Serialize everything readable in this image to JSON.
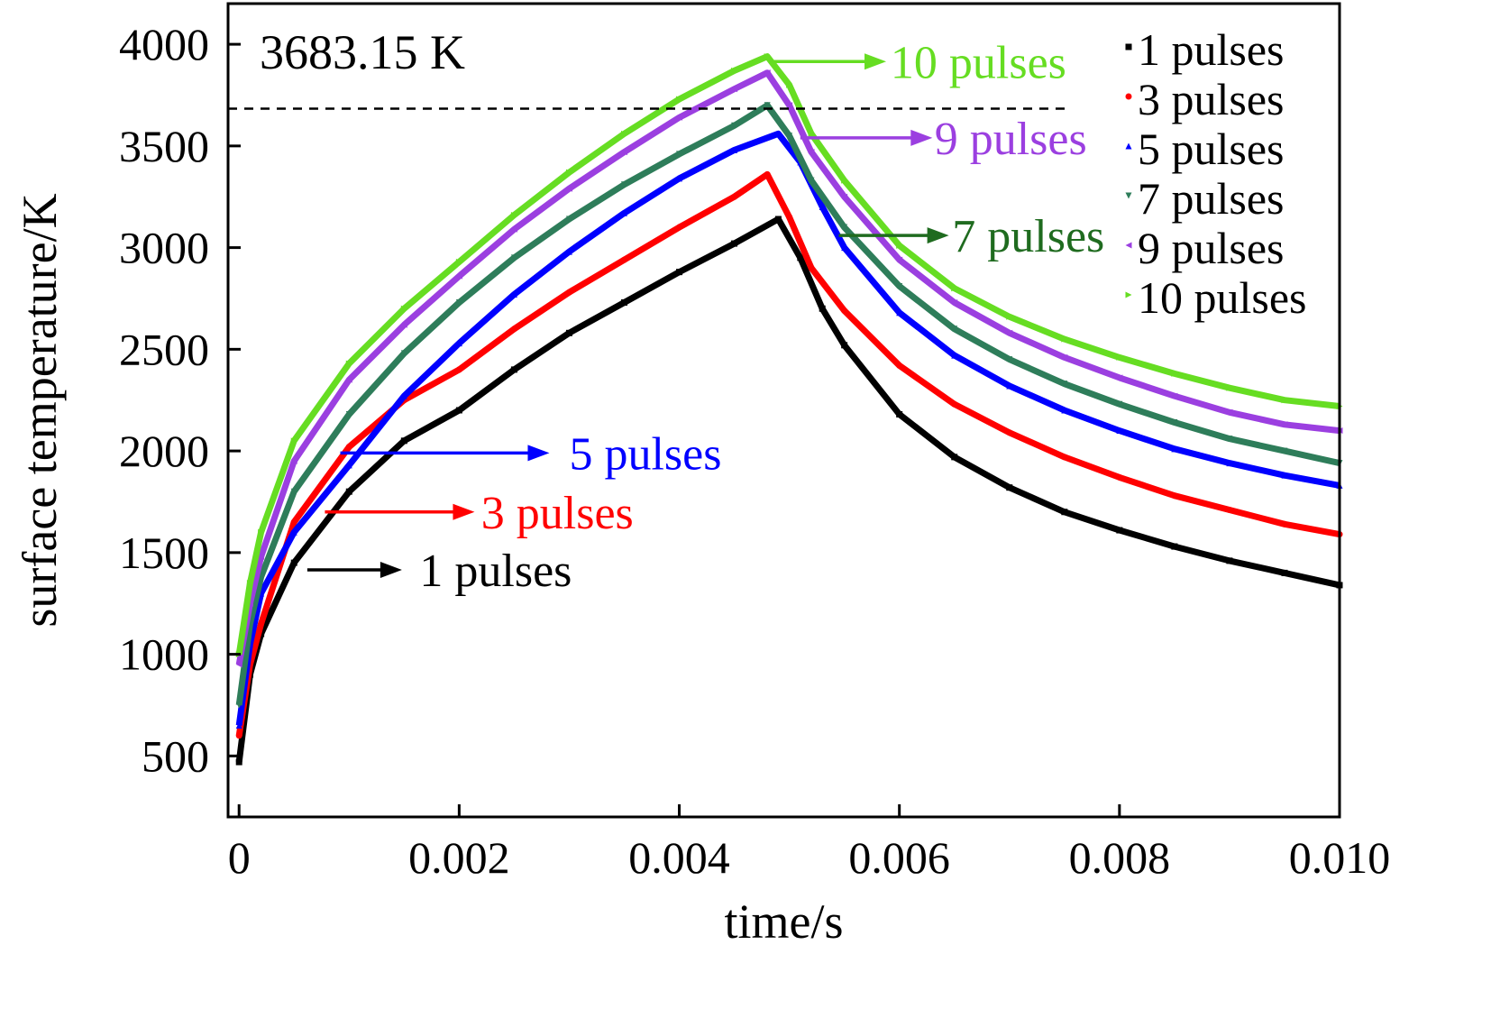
{
  "chart_data": {
    "type": "line",
    "title": "",
    "xlabel": "time/s",
    "ylabel": "surface temperature/K",
    "xlim": [
      -0.0001,
      0.01
    ],
    "ylim": [
      200,
      4200
    ],
    "x_ticks": [
      0,
      0.002,
      0.004,
      0.006,
      0.008,
      0.01
    ],
    "x_tick_labels": [
      "0",
      "0.002",
      "0.004",
      "0.006",
      "0.008",
      "0.010"
    ],
    "y_ticks": [
      500,
      1000,
      1500,
      2000,
      2500,
      3000,
      3500,
      4000
    ],
    "y_tick_labels": [
      "500",
      "1000",
      "1500",
      "2000",
      "2500",
      "3000",
      "3500",
      "4000"
    ],
    "grid": false,
    "legend_position": "top-right",
    "reference_line": {
      "y": 3683.15,
      "label": "3683.15 K",
      "style": "dashed"
    },
    "series": [
      {
        "name": "1 pulses",
        "color": "#000000",
        "marker": "square",
        "x": [
          0,
          0.0001,
          0.0002,
          0.0005,
          0.001,
          0.0015,
          0.002,
          0.0025,
          0.003,
          0.0035,
          0.004,
          0.0045,
          0.0049,
          0.0051,
          0.0053,
          0.0055,
          0.006,
          0.0065,
          0.007,
          0.0075,
          0.008,
          0.0085,
          0.009,
          0.0095,
          0.01
        ],
        "y": [
          470,
          900,
          1100,
          1450,
          1800,
          2050,
          2200,
          2400,
          2580,
          2730,
          2880,
          3020,
          3140,
          2950,
          2700,
          2520,
          2180,
          1970,
          1820,
          1700,
          1610,
          1530,
          1460,
          1400,
          1340
        ]
      },
      {
        "name": "3 pulses",
        "color": "#ff0000",
        "marker": "circle",
        "x": [
          0,
          0.0001,
          0.0002,
          0.0005,
          0.001,
          0.0015,
          0.002,
          0.0025,
          0.003,
          0.0035,
          0.004,
          0.0045,
          0.0048,
          0.005,
          0.0052,
          0.0055,
          0.006,
          0.0065,
          0.007,
          0.0075,
          0.008,
          0.0085,
          0.009,
          0.0095,
          0.01
        ],
        "y": [
          600,
          950,
          1150,
          1650,
          2020,
          2250,
          2400,
          2600,
          2780,
          2940,
          3100,
          3250,
          3360,
          3150,
          2900,
          2690,
          2420,
          2230,
          2090,
          1970,
          1870,
          1780,
          1710,
          1640,
          1590
        ]
      },
      {
        "name": "5 pulses",
        "color": "#0000ff",
        "marker": "triangle-up",
        "x": [
          0,
          0.0001,
          0.0002,
          0.0005,
          0.001,
          0.0015,
          0.002,
          0.0025,
          0.003,
          0.0035,
          0.004,
          0.0045,
          0.0049,
          0.0051,
          0.0053,
          0.0055,
          0.006,
          0.0065,
          0.007,
          0.0075,
          0.008,
          0.0085,
          0.009,
          0.0095,
          0.01
        ],
        "y": [
          650,
          1050,
          1300,
          1600,
          1930,
          2270,
          2530,
          2770,
          2980,
          3170,
          3340,
          3480,
          3560,
          3420,
          3200,
          3000,
          2680,
          2470,
          2320,
          2200,
          2100,
          2010,
          1940,
          1880,
          1830
        ]
      },
      {
        "name": "7 pulses",
        "color": "#2e7d5a",
        "marker": "triangle-down",
        "x": [
          0,
          0.0001,
          0.0002,
          0.0005,
          0.001,
          0.0015,
          0.002,
          0.0025,
          0.003,
          0.0035,
          0.004,
          0.0045,
          0.0048,
          0.005,
          0.0052,
          0.0055,
          0.006,
          0.0065,
          0.007,
          0.0075,
          0.008,
          0.0085,
          0.009,
          0.0095,
          0.01
        ],
        "y": [
          750,
          1150,
          1380,
          1800,
          2180,
          2480,
          2730,
          2950,
          3140,
          3310,
          3460,
          3600,
          3700,
          3550,
          3330,
          3100,
          2810,
          2600,
          2450,
          2330,
          2230,
          2140,
          2060,
          2000,
          1940
        ]
      },
      {
        "name": "9 pulses",
        "color": "#9b3fe0",
        "marker": "triangle-left",
        "x": [
          0,
          0.0001,
          0.0002,
          0.0005,
          0.001,
          0.0015,
          0.002,
          0.0025,
          0.003,
          0.0035,
          0.004,
          0.0045,
          0.0048,
          0.005,
          0.0052,
          0.0055,
          0.006,
          0.0065,
          0.007,
          0.0075,
          0.008,
          0.0085,
          0.009,
          0.0095,
          0.01
        ],
        "y": [
          950,
          1250,
          1480,
          1950,
          2350,
          2620,
          2860,
          3090,
          3290,
          3470,
          3640,
          3780,
          3860,
          3700,
          3470,
          3250,
          2940,
          2730,
          2580,
          2460,
          2360,
          2270,
          2190,
          2130,
          2100
        ]
      },
      {
        "name": "10 pulses",
        "color": "#66dd22",
        "marker": "triangle-right",
        "x": [
          0,
          0.0001,
          0.0002,
          0.0005,
          0.001,
          0.0015,
          0.002,
          0.0025,
          0.003,
          0.0035,
          0.004,
          0.0045,
          0.0048,
          0.005,
          0.0052,
          0.0055,
          0.006,
          0.0065,
          0.007,
          0.0075,
          0.008,
          0.0085,
          0.009,
          0.0095,
          0.01
        ],
        "y": [
          1000,
          1350,
          1600,
          2050,
          2430,
          2700,
          2930,
          3160,
          3370,
          3560,
          3730,
          3870,
          3940,
          3800,
          3560,
          3330,
          3010,
          2800,
          2660,
          2550,
          2460,
          2380,
          2310,
          2250,
          2220
        ]
      }
    ],
    "annotations": [
      {
        "text": "1 pulses",
        "color": "#000000",
        "series": "1 pulses",
        "from": [
          0.00062,
          1415
        ],
        "to": [
          0.00148,
          1415
        ],
        "text_at": [
          0.00164,
          1415
        ]
      },
      {
        "text": "3 pulses",
        "color": "#ff0000",
        "series": "3 pulses",
        "from": [
          0.00078,
          1700
        ],
        "to": [
          0.00214,
          1700
        ],
        "text_at": [
          0.0022,
          1700
        ]
      },
      {
        "text": "5 pulses",
        "color": "#0000ff",
        "series": "5 pulses",
        "from": [
          0.00092,
          1990
        ],
        "to": [
          0.00282,
          1990
        ],
        "text_at": [
          0.003,
          1990
        ]
      },
      {
        "text": "7 pulses",
        "color": "#1f6b1f",
        "series": "7 pulses",
        "from": [
          0.00545,
          3060
        ],
        "to": [
          0.00645,
          3060
        ],
        "text_at": [
          0.00648,
          3060
        ]
      },
      {
        "text": "9 pulses",
        "color": "#9b3fe0",
        "series": "9 pulses",
        "from": [
          0.0051,
          3540
        ],
        "to": [
          0.0063,
          3540
        ],
        "text_at": [
          0.00632,
          3540
        ]
      },
      {
        "text": "10 pulses",
        "color": "#66dd22",
        "series": "10 pulses",
        "from": [
          0.00484,
          3915
        ],
        "to": [
          0.00588,
          3915
        ],
        "text_at": [
          0.00592,
          3915
        ]
      }
    ]
  }
}
